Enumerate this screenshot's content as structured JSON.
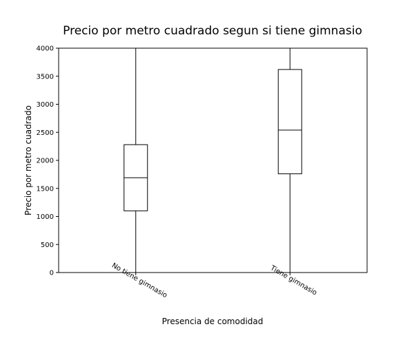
{
  "chart_data": {
    "type": "box",
    "title": "Precio por metro cuadrado segun si tiene gimnasio",
    "xlabel": "Presencia de comodidad",
    "ylabel": "Precio por metro cuadrado",
    "ylim": [
      0,
      4000
    ],
    "yticks": [
      0,
      500,
      1000,
      1500,
      2000,
      2500,
      3000,
      3500,
      4000
    ],
    "grid": false,
    "categories": [
      "No tiene gimnasio",
      "Tiene gimnasio"
    ],
    "boxes": [
      {
        "category": "No tiene gimnasio",
        "whisker_low": 0,
        "q1": 1100,
        "median": 1690,
        "q3": 2280,
        "whisker_high": 4000
      },
      {
        "category": "Tiene gimnasio",
        "whisker_low": 0,
        "q1": 1760,
        "median": 2540,
        "q3": 3620,
        "whisker_high": 4000
      }
    ]
  }
}
